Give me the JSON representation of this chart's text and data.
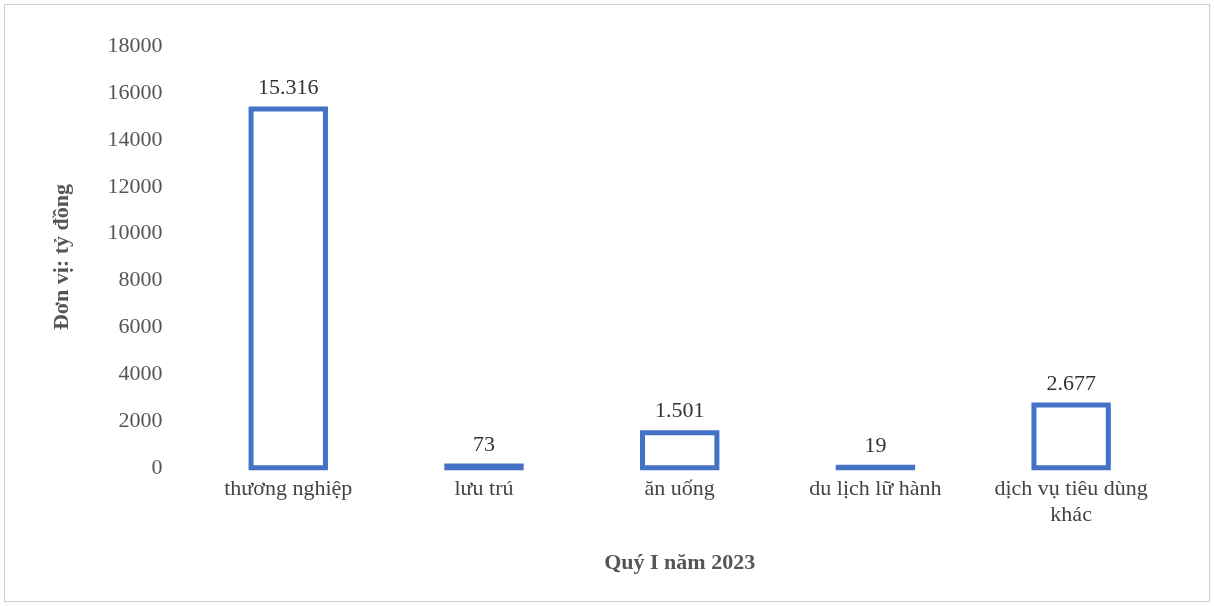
{
  "chart_data": {
    "type": "bar",
    "xlabel": "Quý I năm 2023",
    "ylabel": "Đơn vị: tỷ đồng",
    "categories": [
      "thương nghiệp",
      "lưu trú",
      "ăn uống",
      "du lịch lữ hành",
      "dịch vụ tiêu dùng khác"
    ],
    "values": [
      15316,
      73,
      1501,
      19,
      2677
    ],
    "value_labels": [
      "15.316",
      "73",
      "1.501",
      "19",
      "2.677"
    ],
    "color": "#4472c4",
    "ylim": [
      0,
      18000
    ],
    "yticks": [
      0,
      2000,
      4000,
      6000,
      8000,
      10000,
      12000,
      14000,
      16000,
      18000
    ],
    "grid": false,
    "legend": false
  }
}
